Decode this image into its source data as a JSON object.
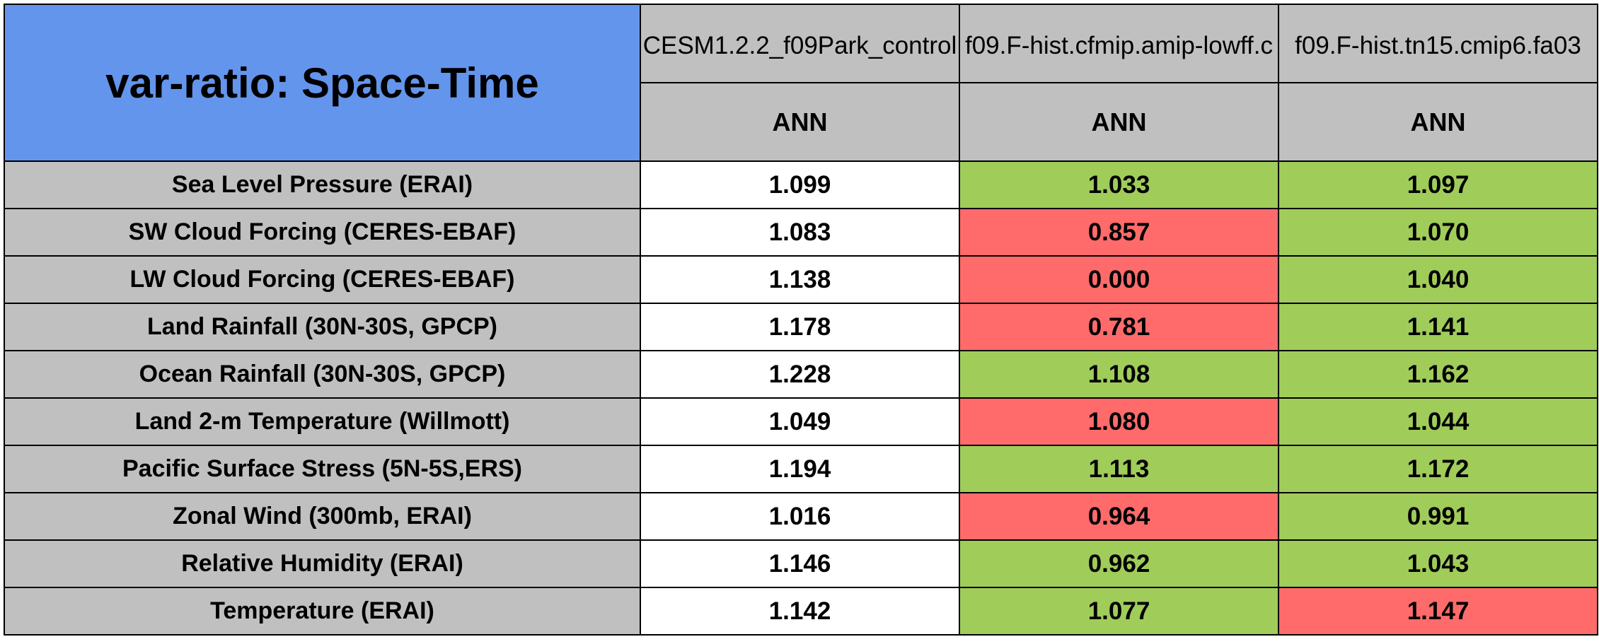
{
  "chart_data": {
    "type": "table",
    "title": "var-ratio: Space-Time",
    "columns": [
      {
        "model": "CESM1.2.2_f09Park_control",
        "period": "ANN"
      },
      {
        "model": "f09.F-hist.cfmip.amip-lowff.c",
        "period": "ANN"
      },
      {
        "model": "f09.F-hist.tn15.cmip6.fa03",
        "period": "ANN"
      }
    ],
    "rows": [
      {
        "label": "Sea Level Pressure (ERAI)",
        "values": [
          "1.099",
          "1.033",
          "1.097"
        ],
        "status": [
          "none",
          "good",
          "good"
        ]
      },
      {
        "label": "SW Cloud Forcing (CERES-EBAF)",
        "values": [
          "1.083",
          "0.857",
          "1.070"
        ],
        "status": [
          "none",
          "bad",
          "good"
        ]
      },
      {
        "label": "LW Cloud Forcing (CERES-EBAF)",
        "values": [
          "1.138",
          "0.000",
          "1.040"
        ],
        "status": [
          "none",
          "bad",
          "good"
        ]
      },
      {
        "label": "Land Rainfall (30N-30S, GPCP)",
        "values": [
          "1.178",
          "0.781",
          "1.141"
        ],
        "status": [
          "none",
          "bad",
          "good"
        ]
      },
      {
        "label": "Ocean Rainfall (30N-30S, GPCP)",
        "values": [
          "1.228",
          "1.108",
          "1.162"
        ],
        "status": [
          "none",
          "good",
          "good"
        ]
      },
      {
        "label": "Land 2-m Temperature (Willmott)",
        "values": [
          "1.049",
          "1.080",
          "1.044"
        ],
        "status": [
          "none",
          "bad",
          "good"
        ]
      },
      {
        "label": "Pacific Surface Stress (5N-5S,ERS)",
        "values": [
          "1.194",
          "1.113",
          "1.172"
        ],
        "status": [
          "none",
          "good",
          "good"
        ]
      },
      {
        "label": "Zonal Wind (300mb, ERAI)",
        "values": [
          "1.016",
          "0.964",
          "0.991"
        ],
        "status": [
          "none",
          "bad",
          "good"
        ]
      },
      {
        "label": "Relative Humidity (ERAI)",
        "values": [
          "1.146",
          "0.962",
          "1.043"
        ],
        "status": [
          "none",
          "good",
          "good"
        ]
      },
      {
        "label": "Temperature (ERAI)",
        "values": [
          "1.142",
          "1.077",
          "1.147"
        ],
        "status": [
          "none",
          "good",
          "bad"
        ]
      }
    ],
    "colors": {
      "title_background": "#6495ED",
      "header_background": "#C0C0C0",
      "label_background": "#C0C0C0",
      "good": "#A0CC5A",
      "bad": "#FF6B6B",
      "none": "#FFFFFF",
      "border": "#000000"
    }
  }
}
